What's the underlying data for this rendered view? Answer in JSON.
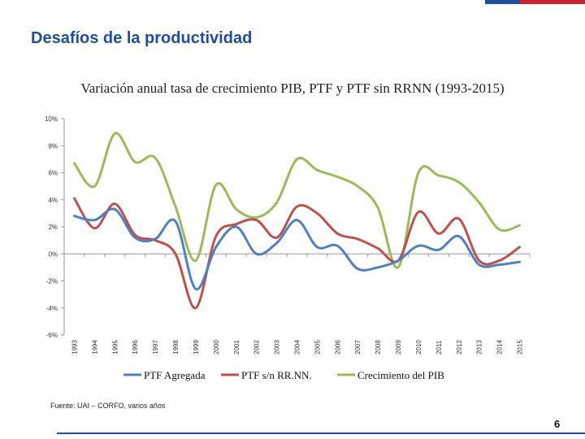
{
  "slide": {
    "title": "Desafíos de la productividad",
    "page_number": "6",
    "source": "Fuente: UAI – CORFO, varios años",
    "colors": {
      "title": "#1f4e9c",
      "flag_blue": "#1f4e9c",
      "flag_red": "#d0202e"
    }
  },
  "chart_data": {
    "type": "line",
    "title": "Variación anual tasa de crecimiento PIB, PTF y PTF sin RRNN (1993-2015)",
    "categories": [
      "1993",
      "1994",
      "1995",
      "1996",
      "1997",
      "1998",
      "1999",
      "2000",
      "2001",
      "2002",
      "2003",
      "2004",
      "2005",
      "2006",
      "2007",
      "2008",
      "2009",
      "2010",
      "2011",
      "2012",
      "2013",
      "2014",
      "2015"
    ],
    "y_ticks": [
      "10%",
      "8%",
      "6%",
      "4%",
      "2%",
      "0%",
      "-2%",
      "-4%",
      "-6%"
    ],
    "ylim": [
      -6,
      10
    ],
    "grid": false,
    "legend_position": "bottom",
    "series": [
      {
        "name": "PTF Agregada",
        "color": "#4f81bd",
        "values": [
          2.8,
          2.5,
          3.3,
          1.2,
          1.1,
          2.4,
          -2.6,
          0.5,
          2.0,
          0.0,
          0.8,
          2.5,
          0.5,
          0.6,
          -1.1,
          -1.0,
          -0.5,
          0.6,
          0.3,
          1.3,
          -0.8,
          -0.8,
          -0.6
        ]
      },
      {
        "name": "PTF s/n RR.NN.",
        "color": "#c0504d",
        "values": [
          4.1,
          1.9,
          3.7,
          1.4,
          1.0,
          0.0,
          -4.0,
          1.3,
          2.2,
          2.5,
          1.2,
          3.5,
          3.0,
          1.5,
          1.1,
          0.4,
          -0.5,
          3.1,
          1.5,
          2.6,
          -0.5,
          -0.5,
          0.5
        ]
      },
      {
        "name": "Crecimiento del PIB",
        "color": "#9bbb59",
        "values": [
          6.7,
          5.0,
          8.9,
          6.8,
          7.1,
          3.5,
          -0.5,
          5.1,
          3.3,
          2.7,
          3.8,
          7.0,
          6.2,
          5.7,
          5.0,
          3.4,
          -1.0,
          6.0,
          5.8,
          5.3,
          3.8,
          1.8,
          2.1
        ]
      }
    ]
  }
}
